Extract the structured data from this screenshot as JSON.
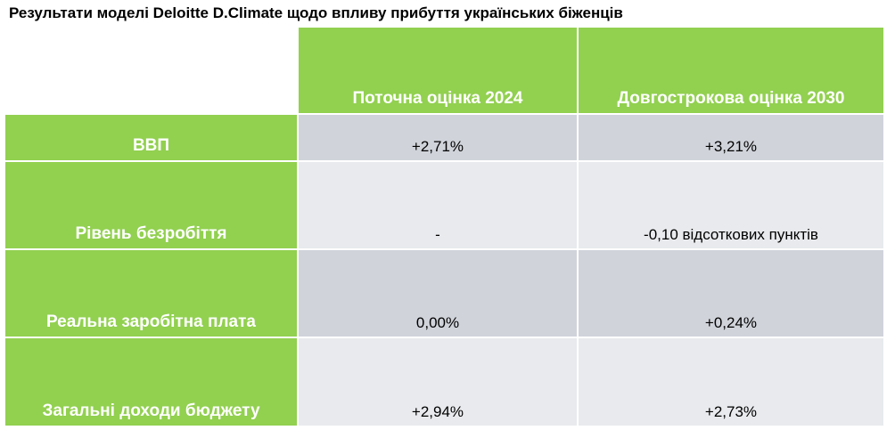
{
  "title": "Результати моделі Deloitte D.Climate щодо впливу прибуття українських біженців",
  "table": {
    "columns": [
      "Поточна оцінка 2024",
      "Довгострокова оцінка 2030"
    ],
    "rows": [
      {
        "label": "ВВП",
        "values": [
          "+2,71%",
          "+3,21%"
        ]
      },
      {
        "label": "Рівень безробіття",
        "values": [
          "-",
          "-0,10 відсоткових пунктів"
        ]
      },
      {
        "label": "Реальна заробітна плата",
        "values": [
          "0,00%",
          "+0,24%"
        ]
      },
      {
        "label": "Загальні доходи бюджету",
        "values": [
          "+2,94%",
          "+2,73%"
        ]
      }
    ]
  },
  "colors": {
    "header_green": "#92d050",
    "row_dark": "#d0d3da",
    "row_light": "#e8eaed"
  }
}
